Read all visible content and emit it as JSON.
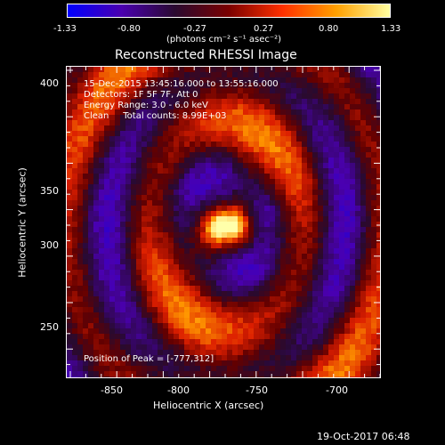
{
  "colorbar": {
    "ticks": [
      "-1.33",
      "-0.80",
      "-0.27",
      "0.27",
      "0.80",
      "1.33"
    ],
    "units": "(photons cm⁻² s⁻¹ asec⁻²)",
    "colors": [
      "#0000ff",
      "#4a00b0",
      "#2a0a30",
      "#7a0000",
      "#ff3000",
      "#ffa000",
      "#ffffa0"
    ]
  },
  "title": "Reconstructed RHESSI Image",
  "info": {
    "line1": "15-Dec-2015 13:45:16.000 to 13:55:16.000",
    "line2": "Detectors: 1F 5F 7F, Att 0",
    "line3": "Energy Range: 3.0 - 6.0 keV",
    "line4": "Clean     Total counts: 8.99E+03",
    "peak": "Position of Peak = [-777,312]"
  },
  "axes": {
    "x_label": "Heliocentric X (arcsec)",
    "y_label": "Heliocentric Y (arcsec)",
    "x_ticks": [
      "-850",
      "-800",
      "-750",
      "-700"
    ],
    "y_ticks": [
      "400",
      "350",
      "300",
      "250"
    ],
    "x_range": [
      -877,
      -680
    ],
    "y_range": [
      215,
      412
    ]
  },
  "footer": {
    "timestamp": "19-Oct-2017 06:48"
  }
}
